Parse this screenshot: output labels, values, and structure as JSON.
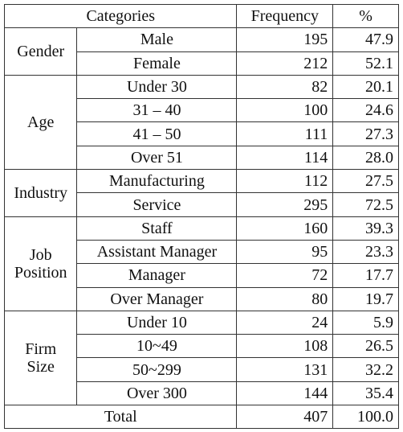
{
  "header": [
    "Categories",
    "Frequency",
    "%"
  ],
  "groups": [
    {
      "label": "Gender",
      "rows": [
        [
          "Male",
          "195",
          "47.9"
        ],
        [
          "Female",
          "212",
          "52.1"
        ]
      ]
    },
    {
      "label": "Age",
      "rows": [
        [
          "Under 30",
          "82",
          "20.1"
        ],
        [
          "31 – 40",
          "100",
          "24.6"
        ],
        [
          "41 – 50",
          "111",
          "27.3"
        ],
        [
          "Over 51",
          "114",
          "28.0"
        ]
      ]
    },
    {
      "label": "Industry",
      "rows": [
        [
          "Manufacturing",
          "112",
          "27.5"
        ],
        [
          "Service",
          "295",
          "72.5"
        ]
      ]
    },
    {
      "label": "Job\nPosition",
      "rows": [
        [
          "Staff",
          "160",
          "39.3"
        ],
        [
          "Assistant Manager",
          "95",
          "23.3"
        ],
        [
          "Manager",
          "72",
          "17.7"
        ],
        [
          "Over Manager",
          "80",
          "19.7"
        ]
      ]
    },
    {
      "label": "Firm\nSize",
      "rows": [
        [
          "Under 10",
          "24",
          "5.9"
        ],
        [
          "10~49",
          "108",
          "26.5"
        ],
        [
          "50~299",
          "131",
          "32.2"
        ],
        [
          "Over 300",
          "144",
          "35.4"
        ]
      ]
    }
  ],
  "total": [
    "Total",
    "407",
    "100.0"
  ]
}
